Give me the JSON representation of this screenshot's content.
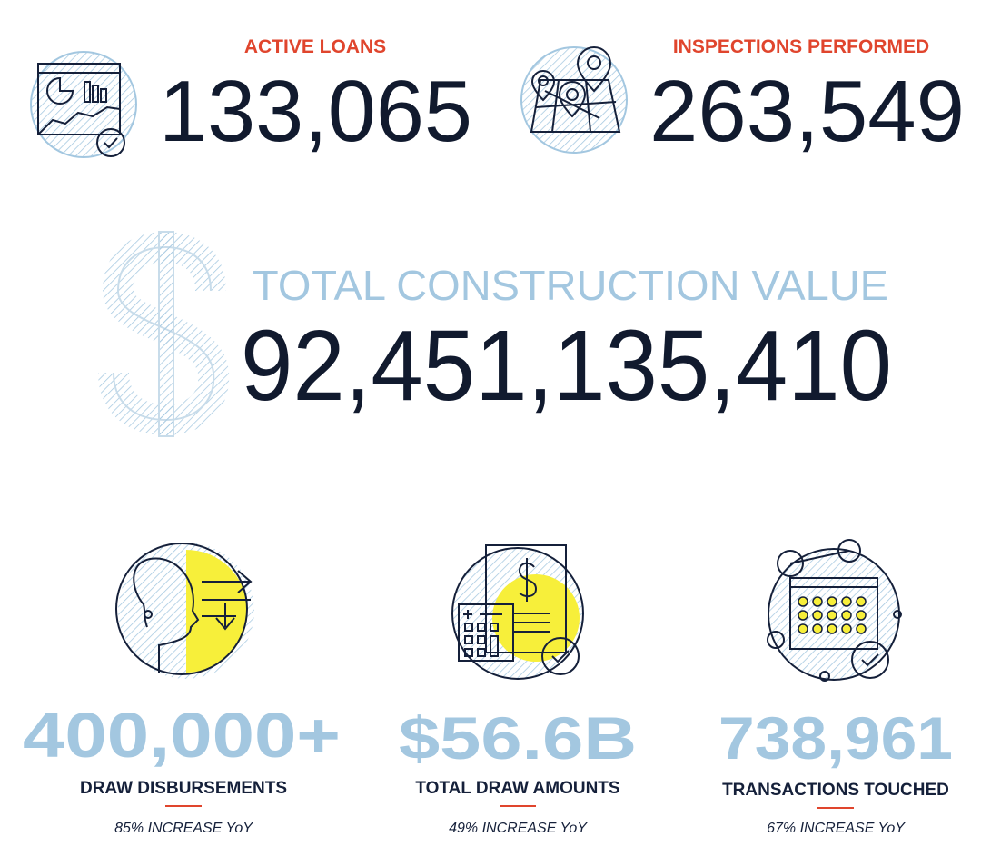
{
  "top_stats": [
    {
      "label": "ACTIVE LOANS",
      "value": "133,065"
    },
    {
      "label": "INSPECTIONS PERFORMED",
      "value": "263,549"
    }
  ],
  "total": {
    "label": "TOTAL CONSTRUCTION VALUE",
    "value": "92,451,135,410"
  },
  "bottom_stats": [
    {
      "value": "400,000+",
      "label": "DRAW DISBURSEMENTS",
      "note": "85% INCREASE YoY"
    },
    {
      "value": "$56.6B",
      "label": "TOTAL DRAW AMOUNTS",
      "note": "49% INCREASE YoY"
    },
    {
      "value": "738,961",
      "label": "TRANSACTIONS TOUCHED",
      "note": "67% INCREASE YoY"
    }
  ]
}
